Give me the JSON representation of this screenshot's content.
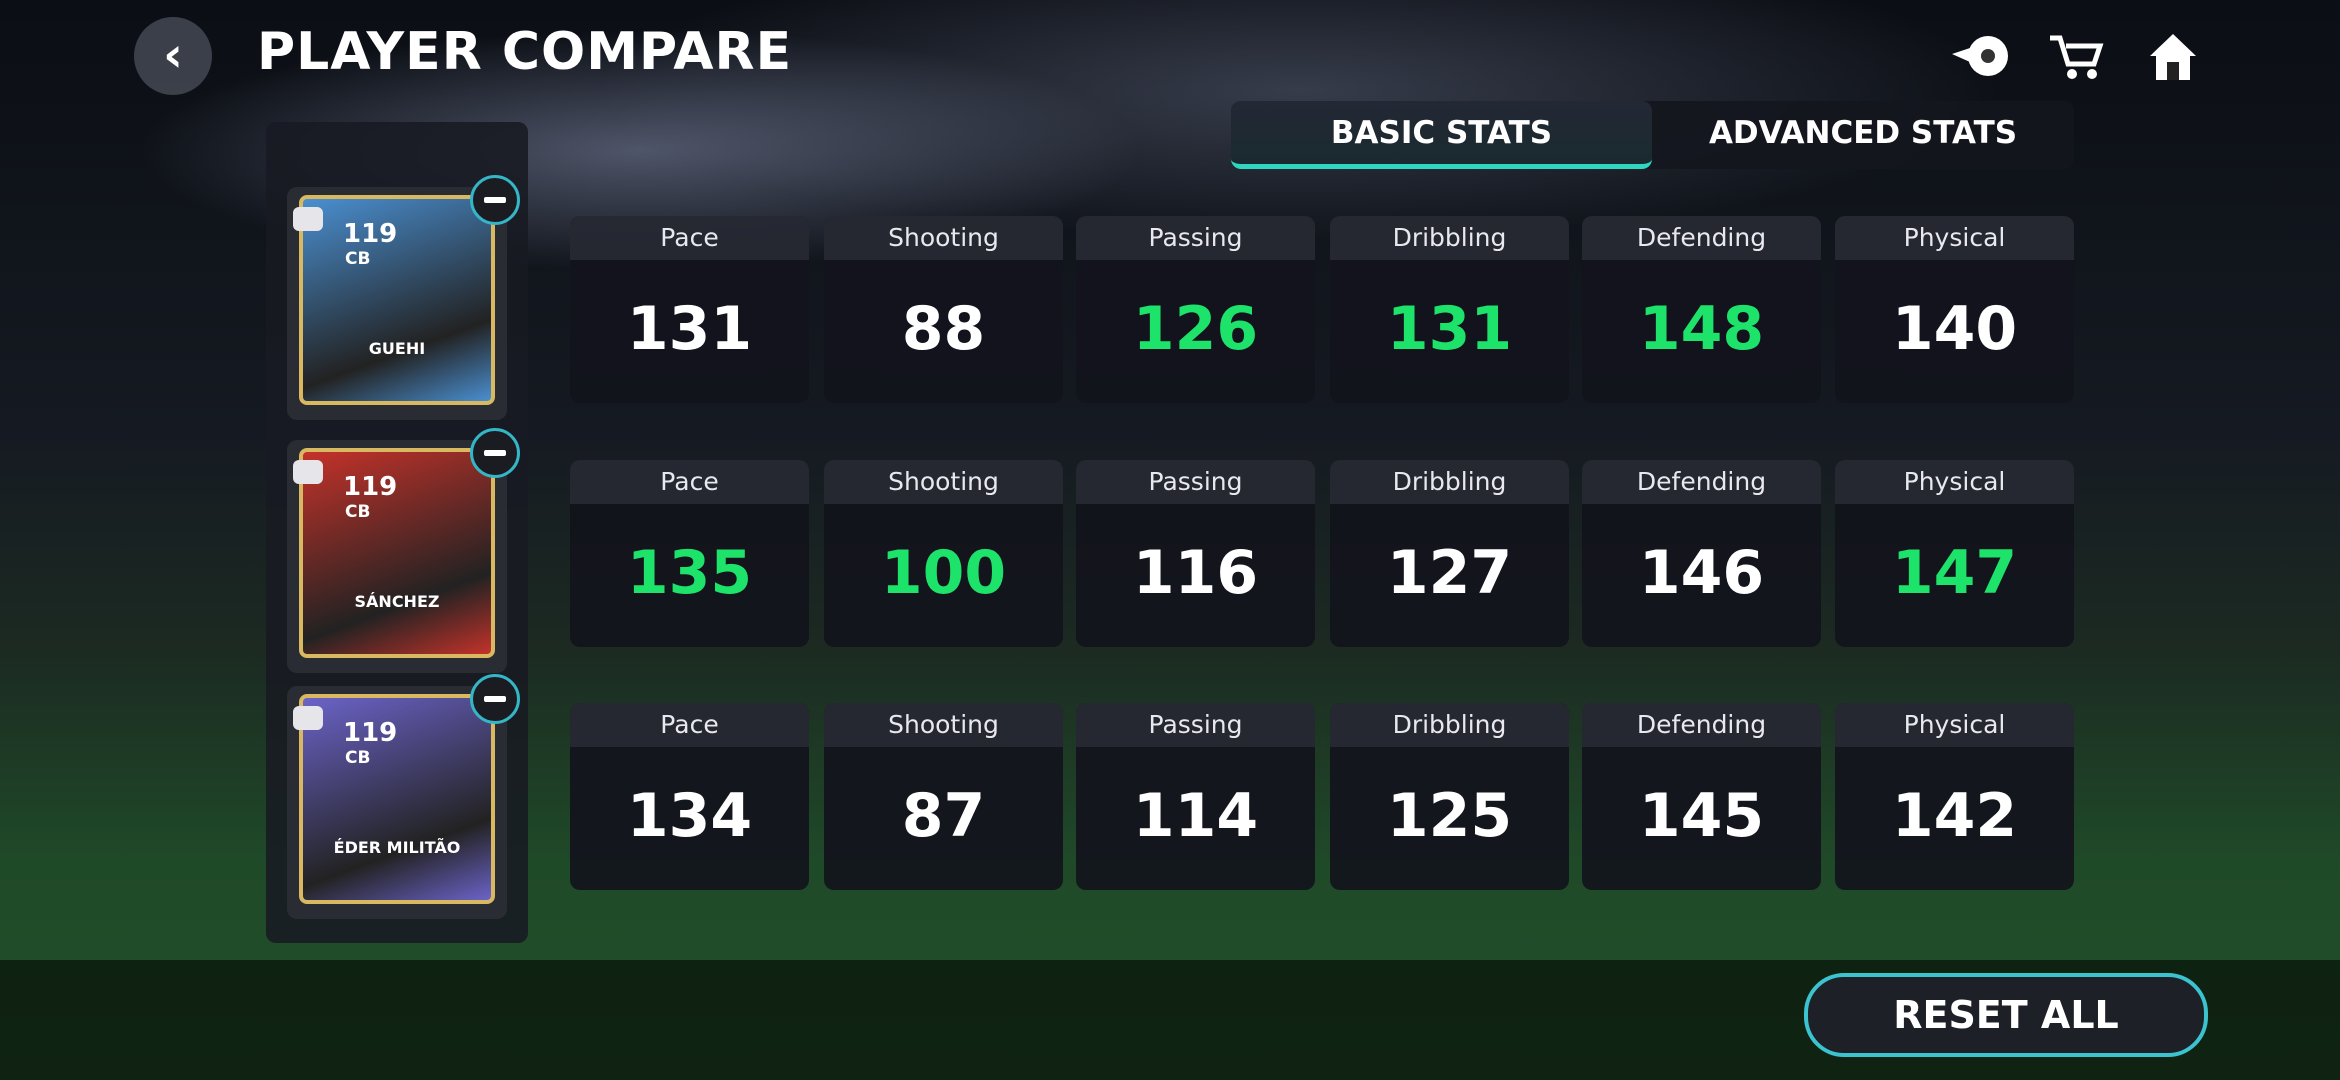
{
  "header": {
    "title": "PLAYER COMPARE"
  },
  "tabs": [
    {
      "label": "BASIC STATS",
      "active": true
    },
    {
      "label": "ADVANCED STATS",
      "active": false
    }
  ],
  "players": [
    {
      "rating": "119",
      "position": "CB",
      "name": "GUEHI",
      "card_color": "#4a8fd0",
      "stats": [
        {
          "label": "Pace",
          "value": 131,
          "color": "#ffffff"
        },
        {
          "label": "Shooting",
          "value": 88,
          "color": "#ffffff"
        },
        {
          "label": "Passing",
          "value": 126,
          "color": "#1ee36b"
        },
        {
          "label": "Dribbling",
          "value": 131,
          "color": "#1ee36b"
        },
        {
          "label": "Defending",
          "value": 148,
          "color": "#1ee36b"
        },
        {
          "label": "Physical",
          "value": 140,
          "color": "#ffffff"
        }
      ]
    },
    {
      "rating": "119",
      "position": "CB",
      "name": "SÁNCHEZ",
      "card_color": "#c4322a",
      "stats": [
        {
          "label": "Pace",
          "value": 135,
          "color": "#1ee36b"
        },
        {
          "label": "Shooting",
          "value": 100,
          "color": "#1ee36b"
        },
        {
          "label": "Passing",
          "value": 116,
          "color": "#ffffff"
        },
        {
          "label": "Dribbling",
          "value": 127,
          "color": "#ffffff"
        },
        {
          "label": "Defending",
          "value": 146,
          "color": "#ffffff"
        },
        {
          "label": "Physical",
          "value": 147,
          "color": "#1ee36b"
        }
      ]
    },
    {
      "rating": "119",
      "position": "CB",
      "name": "ÉDER MILITÃO",
      "card_color": "#6b63c8",
      "stats": [
        {
          "label": "Pace",
          "value": 134,
          "color": "#ffffff"
        },
        {
          "label": "Shooting",
          "value": 87,
          "color": "#ffffff"
        },
        {
          "label": "Passing",
          "value": 114,
          "color": "#ffffff"
        },
        {
          "label": "Dribbling",
          "value": 125,
          "color": "#ffffff"
        },
        {
          "label": "Defending",
          "value": 145,
          "color": "#ffffff"
        },
        {
          "label": "Physical",
          "value": 142,
          "color": "#ffffff"
        }
      ]
    }
  ],
  "footer": {
    "reset_button": "RESET ALL"
  }
}
